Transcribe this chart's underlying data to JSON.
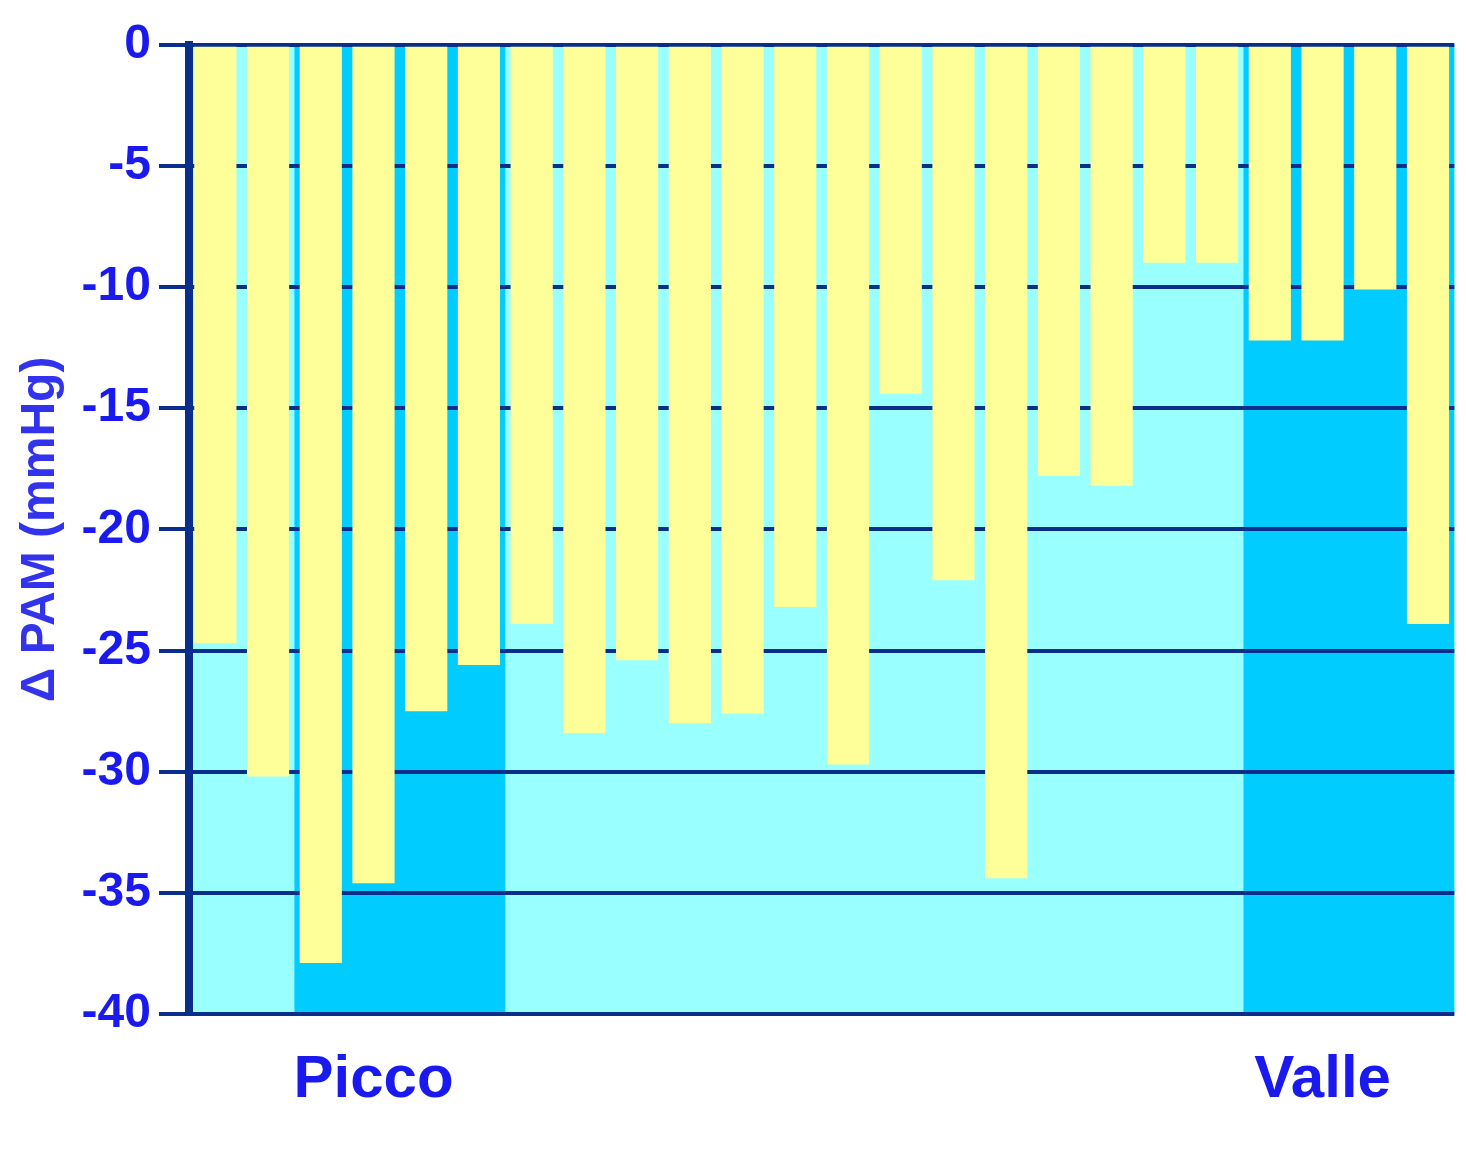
{
  "chart_data": {
    "type": "bar",
    "ylabel": "Δ PAM (mmHg)",
    "categories": [
      null,
      null,
      null,
      "Picco",
      null,
      null,
      null,
      null,
      null,
      null,
      null,
      null,
      null,
      null,
      null,
      null,
      null,
      null,
      null,
      null,
      null,
      "Valle",
      null,
      null
    ],
    "values": [
      -24.7,
      -30.2,
      -37.9,
      -34.6,
      -27.5,
      -25.6,
      -23.9,
      -28.4,
      -25.4,
      -28,
      -27.6,
      -23.2,
      -29.7,
      -14.4,
      -22.1,
      -34.4,
      -17.8,
      -18.2,
      -9,
      -9,
      -12.2,
      -12.2,
      -10.1,
      -23.9
    ],
    "color": "#ffff99",
    "ylim": [
      -40,
      0
    ],
    "yticks": [
      -40,
      -35,
      -30,
      -25,
      -20,
      -15,
      -10,
      -5,
      0
    ],
    "grid": "y"
  }
}
